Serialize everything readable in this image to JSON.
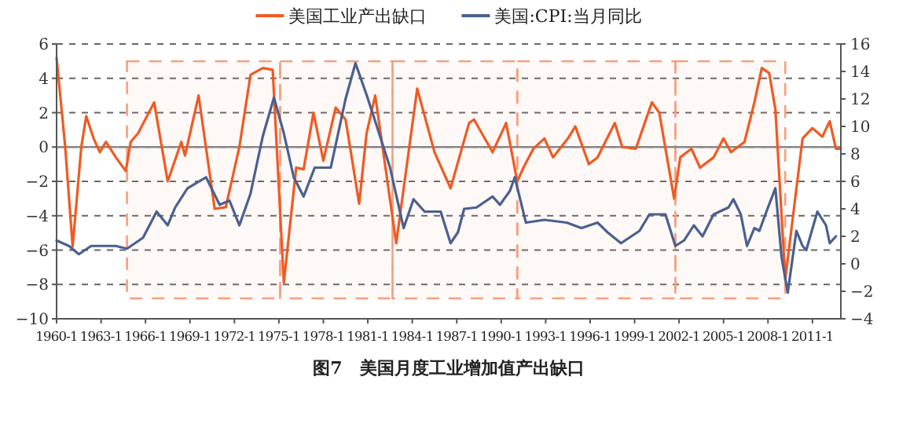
{
  "chart_data": {
    "type": "line",
    "title": "图7　美国月度工业增加值产出缺口",
    "xlim": [
      "1960-01",
      "2012-12"
    ],
    "xticks": [
      {
        "value": "1960-01",
        "label": "1960-1"
      },
      {
        "value": "1963-01",
        "label": "1963-1"
      },
      {
        "value": "1966-01",
        "label": "1966-1"
      },
      {
        "value": "1969-01",
        "label": "1969-1"
      },
      {
        "value": "1972-01",
        "label": "1972-1"
      },
      {
        "value": "1975-01",
        "label": "1975-1"
      },
      {
        "value": "1978-01",
        "label": "1978-1"
      },
      {
        "value": "1981-01",
        "label": "1981-1"
      },
      {
        "value": "1984-01",
        "label": "1984-1"
      },
      {
        "value": "1987-01",
        "label": "1987-1"
      },
      {
        "value": "1990-01",
        "label": "1990-1"
      },
      {
        "value": "1993-01",
        "label": "1993-1"
      },
      {
        "value": "1996-01",
        "label": "1996-1"
      },
      {
        "value": "1999-01",
        "label": "1999-1"
      },
      {
        "value": "2002-01",
        "label": "2002-1"
      },
      {
        "value": "2005-01",
        "label": "2005-1"
      },
      {
        "value": "2008-01",
        "label": "2008-1"
      },
      {
        "value": "2011-01",
        "label": "2011-1"
      }
    ],
    "ylim": [
      -10,
      6
    ],
    "yticks": [
      -10,
      -8,
      -6,
      -4,
      -2,
      0,
      2,
      4,
      6
    ],
    "y2lim": [
      -4,
      16
    ],
    "y2ticks": [
      -4,
      -2,
      0,
      2,
      4,
      6,
      8,
      10,
      12,
      14,
      16
    ],
    "grid": "y",
    "legend": "top",
    "ref_lines": [
      {
        "axis": "y",
        "value": 0,
        "color": "#888888"
      }
    ],
    "bands": [
      {
        "axis": "x",
        "from": "1964-10",
        "to": "1975-02",
        "color": "#f4a080"
      },
      {
        "axis": "x",
        "from": "1975-02",
        "to": "1982-09",
        "color": "#f4a080"
      },
      {
        "axis": "x",
        "from": "1982-09",
        "to": "1991-02",
        "color": "#f4a080"
      },
      {
        "axis": "x",
        "from": "1991-02",
        "to": "2001-10",
        "color": "#f4a080"
      },
      {
        "axis": "x",
        "from": "2001-10",
        "to": "2009-03",
        "color": "#f4a080"
      }
    ],
    "series": [
      {
        "name": "美国工业产出缺口",
        "color": "#f05a23",
        "x": [
          "1960-01",
          "1960-08",
          "1961-02",
          "1961-09",
          "1962-01",
          "1962-07",
          "1962-12",
          "1963-05",
          "1964-01",
          "1964-09",
          "1965-01",
          "1965-07",
          "1966-08",
          "1967-07",
          "1968-06",
          "1968-09",
          "1969-08",
          "1970-09",
          "1971-06",
          "1972-05",
          "1973-02",
          "1973-12",
          "1974-08",
          "1975-05",
          "1976-03",
          "1976-09",
          "1977-05",
          "1978-01",
          "1978-11",
          "1979-07",
          "1980-06",
          "1980-12",
          "1981-07",
          "1982-12",
          "1984-05",
          "1985-07",
          "1986-08",
          "1987-11",
          "1988-03",
          "1989-06",
          "1990-05",
          "1991-02",
          "1991-07",
          "1992-03",
          "1992-12",
          "1993-07",
          "1994-07",
          "1995-01",
          "1995-12",
          "1996-07",
          "1997-09",
          "1998-03",
          "1999-02",
          "2000-03",
          "2000-09",
          "2001-09",
          "2002-02",
          "2002-11",
          "2003-06",
          "2004-05",
          "2005-01",
          "2005-07",
          "2006-06",
          "2007-02",
          "2007-08",
          "2008-02",
          "2008-07",
          "2009-03",
          "2010-05",
          "2011-01",
          "2011-09",
          "2012-03",
          "2012-08",
          "2012-12"
        ],
        "values": [
          5.2,
          0,
          -5.8,
          0,
          1.8,
          0.5,
          -0.3,
          0.3,
          -0.6,
          -1.4,
          0.3,
          0.8,
          2.6,
          -2.0,
          0.3,
          -0.5,
          3.0,
          -3.6,
          -3.5,
          0,
          4.2,
          4.6,
          4.5,
          -7.9,
          -1.2,
          -1.3,
          2.0,
          -0.8,
          2.3,
          1.6,
          -3.3,
          0.8,
          3.0,
          -5.6,
          3.4,
          -0.3,
          -2.4,
          1.4,
          1.6,
          -0.3,
          1.4,
          -2.0,
          -1.2,
          -0.1,
          0.5,
          -0.6,
          0.5,
          1.2,
          -1.0,
          -0.6,
          1.4,
          0,
          -0.1,
          2.6,
          2.0,
          -3.0,
          -0.6,
          -0.1,
          -1.2,
          -0.6,
          0.5,
          -0.3,
          0.3,
          2.6,
          4.6,
          4.3,
          2.2,
          -7.7,
          0.5,
          1.1,
          0.6,
          1.5,
          -0.1,
          -0.1
        ]
      },
      {
        "name": "美国:CPI:当月同比",
        "color": "#4a6090",
        "axis": "y2",
        "x": [
          "1960-01",
          "1960-11",
          "1961-07",
          "1962-05",
          "1964-01",
          "1964-10",
          "1965-11",
          "1966-10",
          "1967-07",
          "1968-01",
          "1968-11",
          "1970-02",
          "1971-01",
          "1971-09",
          "1972-05",
          "1973-02",
          "1973-12",
          "1974-09",
          "1975-05",
          "1976-01",
          "1976-09",
          "1977-06",
          "1978-07",
          "1979-07",
          "1980-03",
          "1980-12",
          "1981-08",
          "1982-07",
          "1983-06",
          "1984-02",
          "1984-11",
          "1985-12",
          "1986-08",
          "1987-02",
          "1987-07",
          "1988-05",
          "1989-06",
          "1989-12",
          "1990-08",
          "1990-12",
          "1991-09",
          "1992-12",
          "1994-06",
          "1995-06",
          "1996-07",
          "1997-03",
          "1998-02",
          "1999-05",
          "2000-01",
          "2001-02",
          "2001-10",
          "2002-05",
          "2003-01",
          "2003-08",
          "2004-05",
          "2005-05",
          "2005-09",
          "2006-03",
          "2006-08",
          "2007-02",
          "2007-06",
          "2008-01",
          "2008-07",
          "2008-12",
          "2009-05",
          "2009-12",
          "2010-05",
          "2010-08",
          "2011-05",
          "2011-12",
          "2012-03",
          "2012-08"
        ],
        "values": [
          1.7,
          1.3,
          0.7,
          1.3,
          1.3,
          1.1,
          1.9,
          3.8,
          2.8,
          4.1,
          5.5,
          6.3,
          4.3,
          4.6,
          2.8,
          5.1,
          9.3,
          12.1,
          9.5,
          6.3,
          4.9,
          7.0,
          7.0,
          12.0,
          14.6,
          12.3,
          10.1,
          7.0,
          2.6,
          4.7,
          3.8,
          3.8,
          1.5,
          2.3,
          4.0,
          4.1,
          4.9,
          4.3,
          5.3,
          6.3,
          3.0,
          3.2,
          3.0,
          2.6,
          3.0,
          2.3,
          1.5,
          2.4,
          3.6,
          3.6,
          1.3,
          1.7,
          2.8,
          2.0,
          3.6,
          4.1,
          4.7,
          3.6,
          1.3,
          2.6,
          2.4,
          4.1,
          5.5,
          0.5,
          -2.1,
          2.4,
          1.3,
          1.0,
          3.8,
          2.8,
          1.5,
          2.0
        ]
      }
    ]
  }
}
